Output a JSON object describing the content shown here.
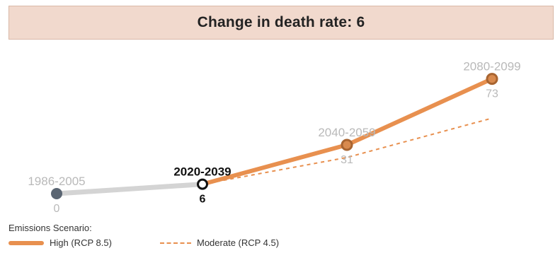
{
  "header": {
    "title": "Change in death rate: 6"
  },
  "chart_data": {
    "type": "line",
    "categories": [
      "1986-2005",
      "2020-2039",
      "2040-2059",
      "2080-2099"
    ],
    "active_category": "2020-2039",
    "value_labels": [
      "0",
      "6",
      "31",
      "73"
    ],
    "ylim": [
      0,
      80
    ],
    "series": [
      {
        "name": "High (RCP 8.5)",
        "style": "solid",
        "values": [
          0,
          6,
          31,
          73
        ],
        "color": "#e8904f"
      },
      {
        "name": "Moderate (RCP 4.5)",
        "style": "dashed",
        "values": [
          null,
          6,
          23,
          48
        ],
        "color": "#e8904f"
      }
    ],
    "historical_color": "#d4d4d4",
    "point_color": "#5a6572",
    "grid": false,
    "legend": {
      "title": "Emissions Scenario:",
      "position": "bottom-left"
    }
  }
}
